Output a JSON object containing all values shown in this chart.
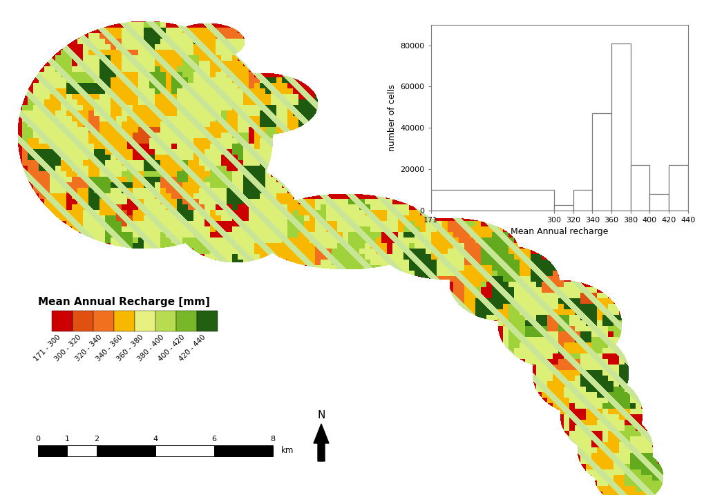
{
  "legend_title": "Mean Annual Recharge [mm]",
  "colorbar_colors": [
    "#cc0000",
    "#e05010",
    "#f07020",
    "#f8b800",
    "#e8f080",
    "#b8dc50",
    "#78b828",
    "#206010"
  ],
  "legend_labels": [
    "171 - 300",
    "300 - 320",
    "320 - 340",
    "340 - 360",
    "360 - 380",
    "380 - 400",
    "400 - 420",
    "420 - 440"
  ],
  "hist_bin_edges": [
    171,
    300,
    320,
    340,
    360,
    380,
    400,
    420,
    440
  ],
  "hist_values": [
    10000,
    2500,
    10000,
    47000,
    81000,
    22000,
    8000,
    22000
  ],
  "hist_xlabel": "Mean Annual recharge",
  "hist_ylabel": "number of cells",
  "hist_yticks": [
    0,
    20000,
    40000,
    60000,
    80000
  ],
  "hist_xticks": [
    171,
    300,
    320,
    340,
    360,
    380,
    400,
    420,
    440
  ],
  "scale_bar_km": [
    0,
    1,
    2,
    4,
    6,
    8
  ],
  "scale_bar_unit": "km",
  "background_color": "#ffffff",
  "map_outline_color": "#000000",
  "map_dominant_color": "#c8e880"
}
